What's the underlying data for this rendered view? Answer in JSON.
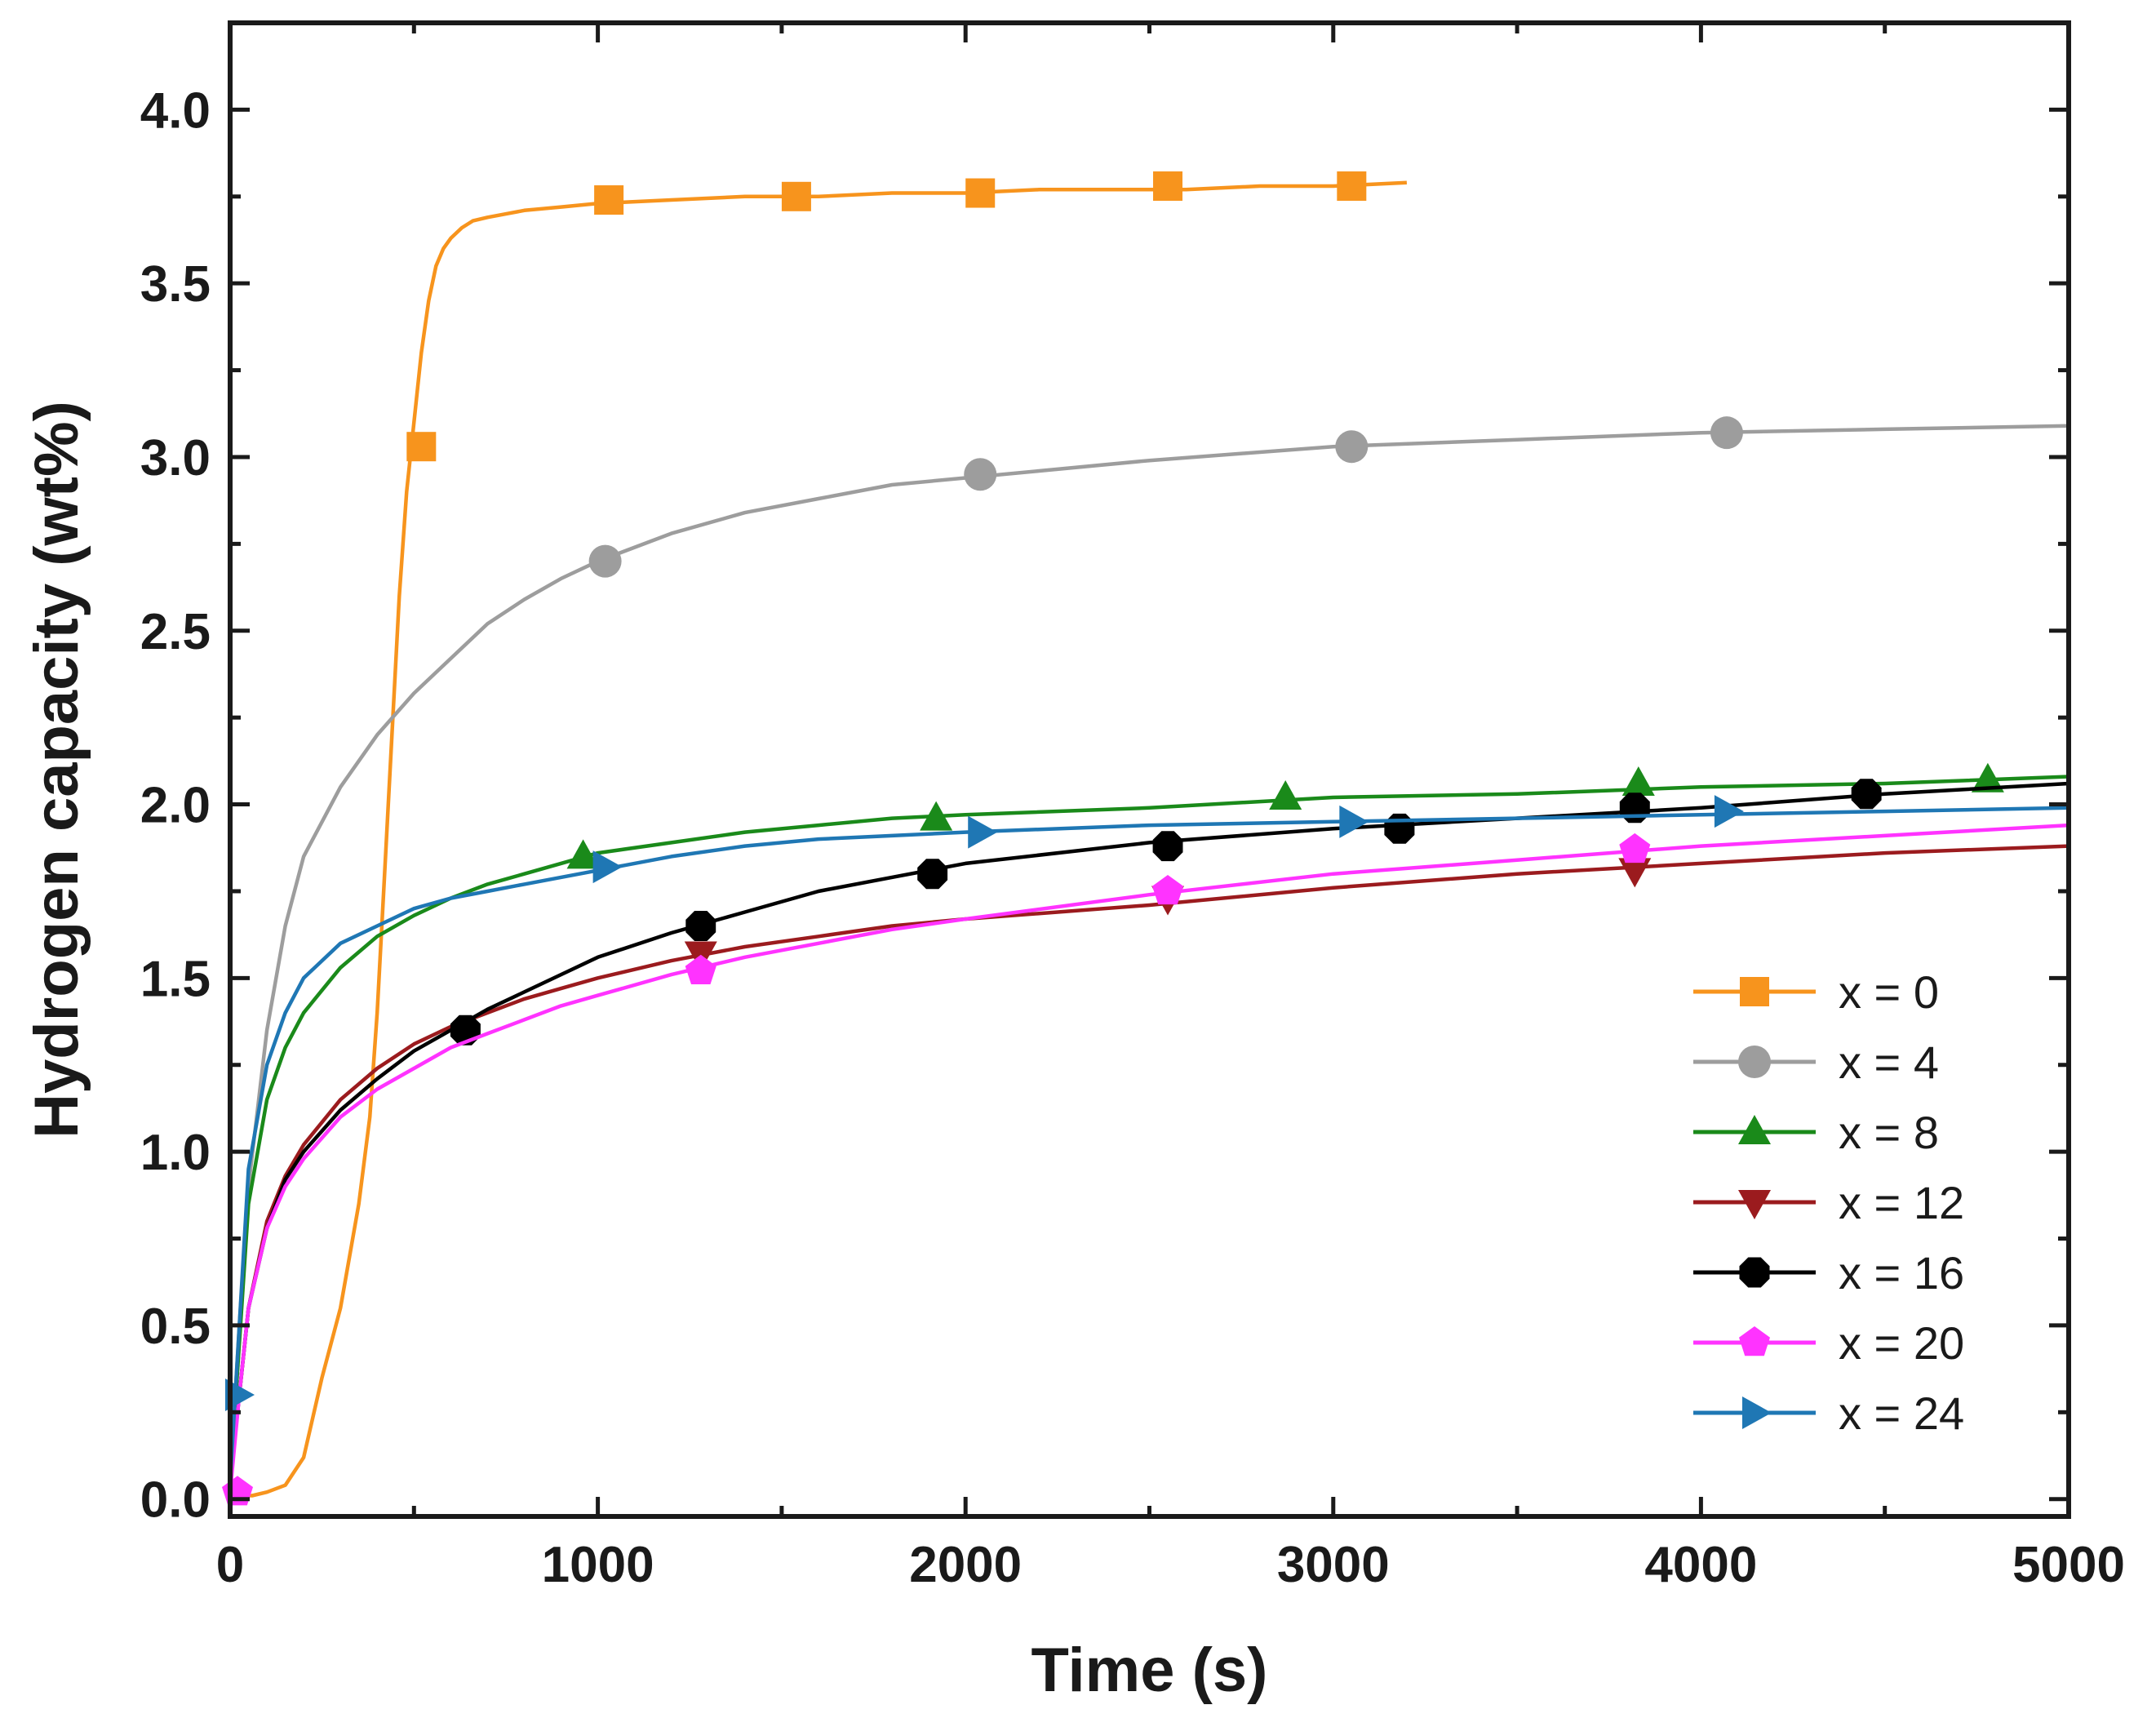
{
  "chart_data": {
    "type": "line",
    "title": "",
    "xlabel": "Time (s)",
    "ylabel": "Hydrogen capacity (wt%)",
    "xlim": [
      0,
      5000
    ],
    "ylim": [
      -0.05,
      4.25
    ],
    "xticks": [
      0,
      1000,
      2000,
      3000,
      4000,
      5000
    ],
    "yticks": [
      0.0,
      0.5,
      1.0,
      1.5,
      2.0,
      2.5,
      3.0,
      3.5,
      4.0
    ],
    "xtick_labels": [
      "0",
      "1000",
      "2000",
      "3000",
      "4000",
      "5000"
    ],
    "ytick_labels": [
      "0.0",
      "0.5",
      "1.0",
      "1.5",
      "2.0",
      "2.5",
      "3.0",
      "3.5",
      "4.0"
    ],
    "grid": false,
    "legend_position": "bottom-right",
    "series": [
      {
        "name": "x = 0",
        "color": "#f7941d",
        "marker": "square",
        "x": [
          0,
          30,
          60,
          100,
          150,
          200,
          250,
          300,
          350,
          380,
          400,
          420,
          440,
          460,
          480,
          500,
          520,
          540,
          560,
          580,
          600,
          630,
          660,
          700,
          750,
          800,
          900,
          1000,
          1200,
          1400,
          1600,
          1800,
          2000,
          2200,
          2400,
          2600,
          2800,
          3000,
          3200
        ],
        "y": [
          0.02,
          0.01,
          0.01,
          0.02,
          0.04,
          0.12,
          0.35,
          0.55,
          0.85,
          1.1,
          1.4,
          1.8,
          2.2,
          2.6,
          2.9,
          3.1,
          3.3,
          3.45,
          3.55,
          3.6,
          3.63,
          3.66,
          3.68,
          3.69,
          3.7,
          3.71,
          3.72,
          3.73,
          3.74,
          3.75,
          3.75,
          3.76,
          3.76,
          3.77,
          3.77,
          3.77,
          3.78,
          3.78,
          3.79
        ],
        "marker_x": [
          520,
          1030,
          1540,
          2040,
          2550,
          3050
        ],
        "marker_y": [
          3.03,
          3.74,
          3.75,
          3.76,
          3.78,
          3.78
        ]
      },
      {
        "name": "x = 4",
        "color": "#9d9d9d",
        "marker": "circle",
        "x": [
          0,
          25,
          50,
          100,
          150,
          200,
          300,
          400,
          500,
          600,
          700,
          800,
          900,
          1000,
          1200,
          1400,
          1600,
          1800,
          2000,
          2200,
          2500,
          3000,
          3500,
          4000,
          4500,
          5000
        ],
        "y": [
          0.05,
          0.5,
          0.9,
          1.35,
          1.65,
          1.85,
          2.05,
          2.2,
          2.32,
          2.42,
          2.52,
          2.59,
          2.65,
          2.7,
          2.78,
          2.84,
          2.88,
          2.92,
          2.94,
          2.96,
          2.99,
          3.03,
          3.05,
          3.07,
          3.08,
          3.09
        ],
        "marker_x": [
          1020,
          2040,
          3050,
          4070
        ],
        "marker_y": [
          2.7,
          2.95,
          3.03,
          3.07
        ]
      },
      {
        "name": "x = 8",
        "color": "#1a8a1a",
        "marker": "triangle-up",
        "x": [
          0,
          25,
          50,
          100,
          150,
          200,
          300,
          400,
          500,
          600,
          700,
          800,
          900,
          1000,
          1200,
          1400,
          1600,
          1800,
          2000,
          2500,
          3000,
          3500,
          4000,
          4500,
          5000
        ],
        "y": [
          0.05,
          0.45,
          0.85,
          1.15,
          1.3,
          1.4,
          1.53,
          1.62,
          1.68,
          1.73,
          1.77,
          1.8,
          1.83,
          1.86,
          1.89,
          1.92,
          1.94,
          1.96,
          1.97,
          1.99,
          2.02,
          2.03,
          2.05,
          2.06,
          2.08
        ],
        "marker_x": [
          960,
          1920,
          2870,
          3830,
          4780
        ],
        "marker_y": [
          1.85,
          1.96,
          2.02,
          2.06,
          2.07
        ]
      },
      {
        "name": "x = 12",
        "color": "#9b1b1e",
        "marker": "triangle-down",
        "x": [
          0,
          25,
          50,
          100,
          150,
          200,
          300,
          400,
          500,
          600,
          700,
          800,
          900,
          1000,
          1200,
          1400,
          1600,
          1800,
          2000,
          2500,
          3000,
          3500,
          4000,
          4500,
          5000
        ],
        "y": [
          0.05,
          0.3,
          0.55,
          0.8,
          0.93,
          1.02,
          1.15,
          1.24,
          1.31,
          1.36,
          1.4,
          1.44,
          1.47,
          1.5,
          1.55,
          1.59,
          1.62,
          1.65,
          1.67,
          1.71,
          1.76,
          1.8,
          1.83,
          1.86,
          1.88
        ],
        "marker_x": [
          1280,
          2550,
          3820
        ],
        "marker_y": [
          1.57,
          1.73,
          1.81
        ]
      },
      {
        "name": "x = 16",
        "color": "#000000",
        "marker": "octagon",
        "x": [
          0,
          25,
          50,
          100,
          150,
          200,
          300,
          400,
          500,
          600,
          700,
          800,
          900,
          1000,
          1200,
          1400,
          1600,
          1800,
          2000,
          2500,
          3000,
          3500,
          4000,
          4500,
          5000
        ],
        "y": [
          0.05,
          0.3,
          0.55,
          0.78,
          0.92,
          1.0,
          1.12,
          1.21,
          1.29,
          1.35,
          1.41,
          1.46,
          1.51,
          1.56,
          1.63,
          1.69,
          1.75,
          1.79,
          1.83,
          1.89,
          1.93,
          1.96,
          1.99,
          2.03,
          2.06
        ],
        "marker_x": [
          640,
          1280,
          1910,
          2550,
          3180,
          3820,
          4450
        ],
        "marker_y": [
          1.35,
          1.65,
          1.8,
          1.88,
          1.93,
          1.99,
          2.03
        ]
      },
      {
        "name": "x = 20",
        "color": "#ff33ff",
        "marker": "pentagon",
        "x": [
          0,
          25,
          50,
          100,
          150,
          200,
          300,
          400,
          500,
          600,
          700,
          800,
          900,
          1000,
          1200,
          1400,
          1600,
          1800,
          2000,
          2500,
          3000,
          3500,
          4000,
          4500,
          5000
        ],
        "y": [
          0.02,
          0.3,
          0.55,
          0.78,
          0.9,
          0.98,
          1.1,
          1.18,
          1.24,
          1.3,
          1.34,
          1.38,
          1.42,
          1.45,
          1.51,
          1.56,
          1.6,
          1.64,
          1.67,
          1.74,
          1.8,
          1.84,
          1.88,
          1.91,
          1.94
        ],
        "marker_x": [
          20,
          1280,
          2550,
          3820
        ],
        "marker_y": [
          0.02,
          1.52,
          1.75,
          1.87
        ]
      },
      {
        "name": "x = 24",
        "color": "#1f77b4",
        "marker": "triangle-right",
        "x": [
          0,
          25,
          50,
          100,
          150,
          200,
          300,
          400,
          500,
          600,
          700,
          800,
          900,
          1000,
          1200,
          1400,
          1600,
          1800,
          2000,
          2500,
          3000,
          3500,
          4000,
          4500,
          5000
        ],
        "y": [
          0.05,
          0.5,
          0.95,
          1.25,
          1.4,
          1.5,
          1.6,
          1.65,
          1.7,
          1.73,
          1.75,
          1.77,
          1.79,
          1.81,
          1.85,
          1.88,
          1.9,
          1.91,
          1.92,
          1.94,
          1.95,
          1.96,
          1.97,
          1.98,
          1.99
        ],
        "marker_x": [
          20,
          1020,
          2040,
          3050,
          4070
        ],
        "marker_y": [
          0.3,
          1.82,
          1.92,
          1.95,
          1.98
        ]
      }
    ]
  }
}
